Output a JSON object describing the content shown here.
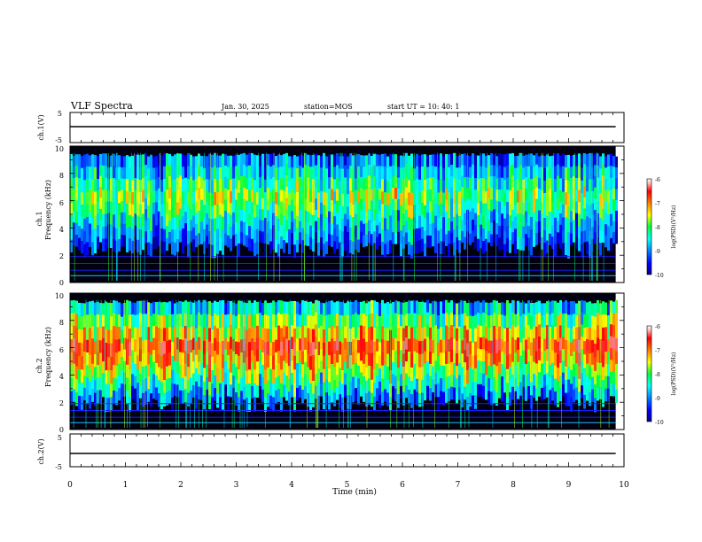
{
  "header": {
    "title": "VLF Spectra",
    "date": "Jan. 30, 2025",
    "station": "station=MOS",
    "start": "start  UT =   10: 40: 1"
  },
  "chart_data": [
    {
      "id": "ch1-waveform",
      "type": "line",
      "ylabel": "ch.1(V)",
      "ylim": [
        -5,
        5
      ],
      "yticks": [
        "5",
        "-5"
      ],
      "xlim": [
        0,
        10
      ],
      "trace_level": 0
    },
    {
      "id": "ch1-spectrogram",
      "type": "heatmap",
      "ylabel_top": "ch.1",
      "ylabel": "Frequency (kHz)",
      "ylim": [
        0,
        10
      ],
      "yticks": [
        "0",
        "2",
        "4",
        "6",
        "8",
        "10"
      ],
      "xlim": [
        0,
        10
      ],
      "data_end_min": 9.85,
      "band_khz": [
        3.0,
        9.5
      ],
      "level": 0.55,
      "colorbar": {
        "label": "log(PSD)(V²/Hz)",
        "ticks": [
          "-6",
          "-7",
          "-8",
          "-9",
          "-10"
        ]
      }
    },
    {
      "id": "ch2-spectrogram",
      "type": "heatmap",
      "ylabel_top": "ch.2",
      "ylabel": "Frequency (kHz)",
      "ylim": [
        0,
        10
      ],
      "yticks": [
        "0",
        "2",
        "4",
        "6",
        "8",
        "10"
      ],
      "xlim": [
        0,
        10
      ],
      "data_end_min": 9.85,
      "band_khz": [
        2.5,
        9.5
      ],
      "level": 0.85,
      "colorbar": {
        "label": "log(PSD)(V²/Hz)",
        "ticks": [
          "-6",
          "-7",
          "-8",
          "-9",
          "-10"
        ]
      }
    },
    {
      "id": "ch2-waveform",
      "type": "line",
      "ylabel": "ch.2(V)",
      "ylim": [
        -5,
        5
      ],
      "yticks": [
        "5",
        "-5"
      ],
      "xlim": [
        0,
        10
      ],
      "trace_level": 0
    }
  ],
  "xaxis": {
    "label": "Time (min)",
    "ticks": [
      "0",
      "1",
      "2",
      "3",
      "4",
      "5",
      "6",
      "7",
      "8",
      "9",
      "10"
    ]
  },
  "colors": {
    "background": "#000000",
    "frame": "#000000"
  }
}
